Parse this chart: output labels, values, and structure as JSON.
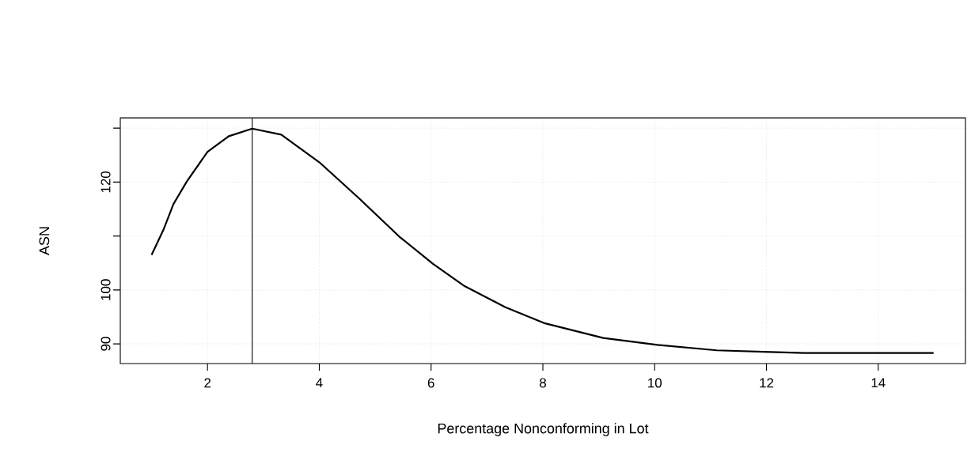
{
  "chart_data": {
    "type": "line",
    "xlabel": "Percentage Nonconforming in Lot",
    "ylabel": "ASN",
    "x": [
      1,
      1.21,
      1.39,
      1.63,
      2.0,
      2.38,
      2.8,
      3.32,
      4.02,
      4.72,
      5.43,
      6.04,
      6.6,
      7.33,
      8.04,
      9.08,
      10.05,
      11.11,
      12.07,
      12.68,
      14.99
    ],
    "series": [
      {
        "color": "#000000",
        "values": [
          106.5,
          111.1,
          115.9,
          120.1,
          125.6,
          128.5,
          129.9,
          128.8,
          123.5,
          116.9,
          109.9,
          104.8,
          100.7,
          96.8,
          93.8,
          91.1,
          89.8,
          88.8,
          88.5,
          88.3,
          88.3
        ]
      }
    ],
    "xlim": [
      0.44,
      15.56
    ],
    "ylim": [
      86.35,
      131.9
    ],
    "xticks": [
      2,
      4,
      6,
      8,
      10,
      12,
      14
    ],
    "yticks": [
      90,
      100,
      {
        "value": 110,
        "label": null
      },
      120,
      {
        "value": 130,
        "label": null
      }
    ],
    "ref_lines": [
      {
        "axis": "x",
        "value": 2.8,
        "color": "#000000"
      }
    ],
    "grid": true,
    "marker": "none",
    "line_style": "solid"
  }
}
